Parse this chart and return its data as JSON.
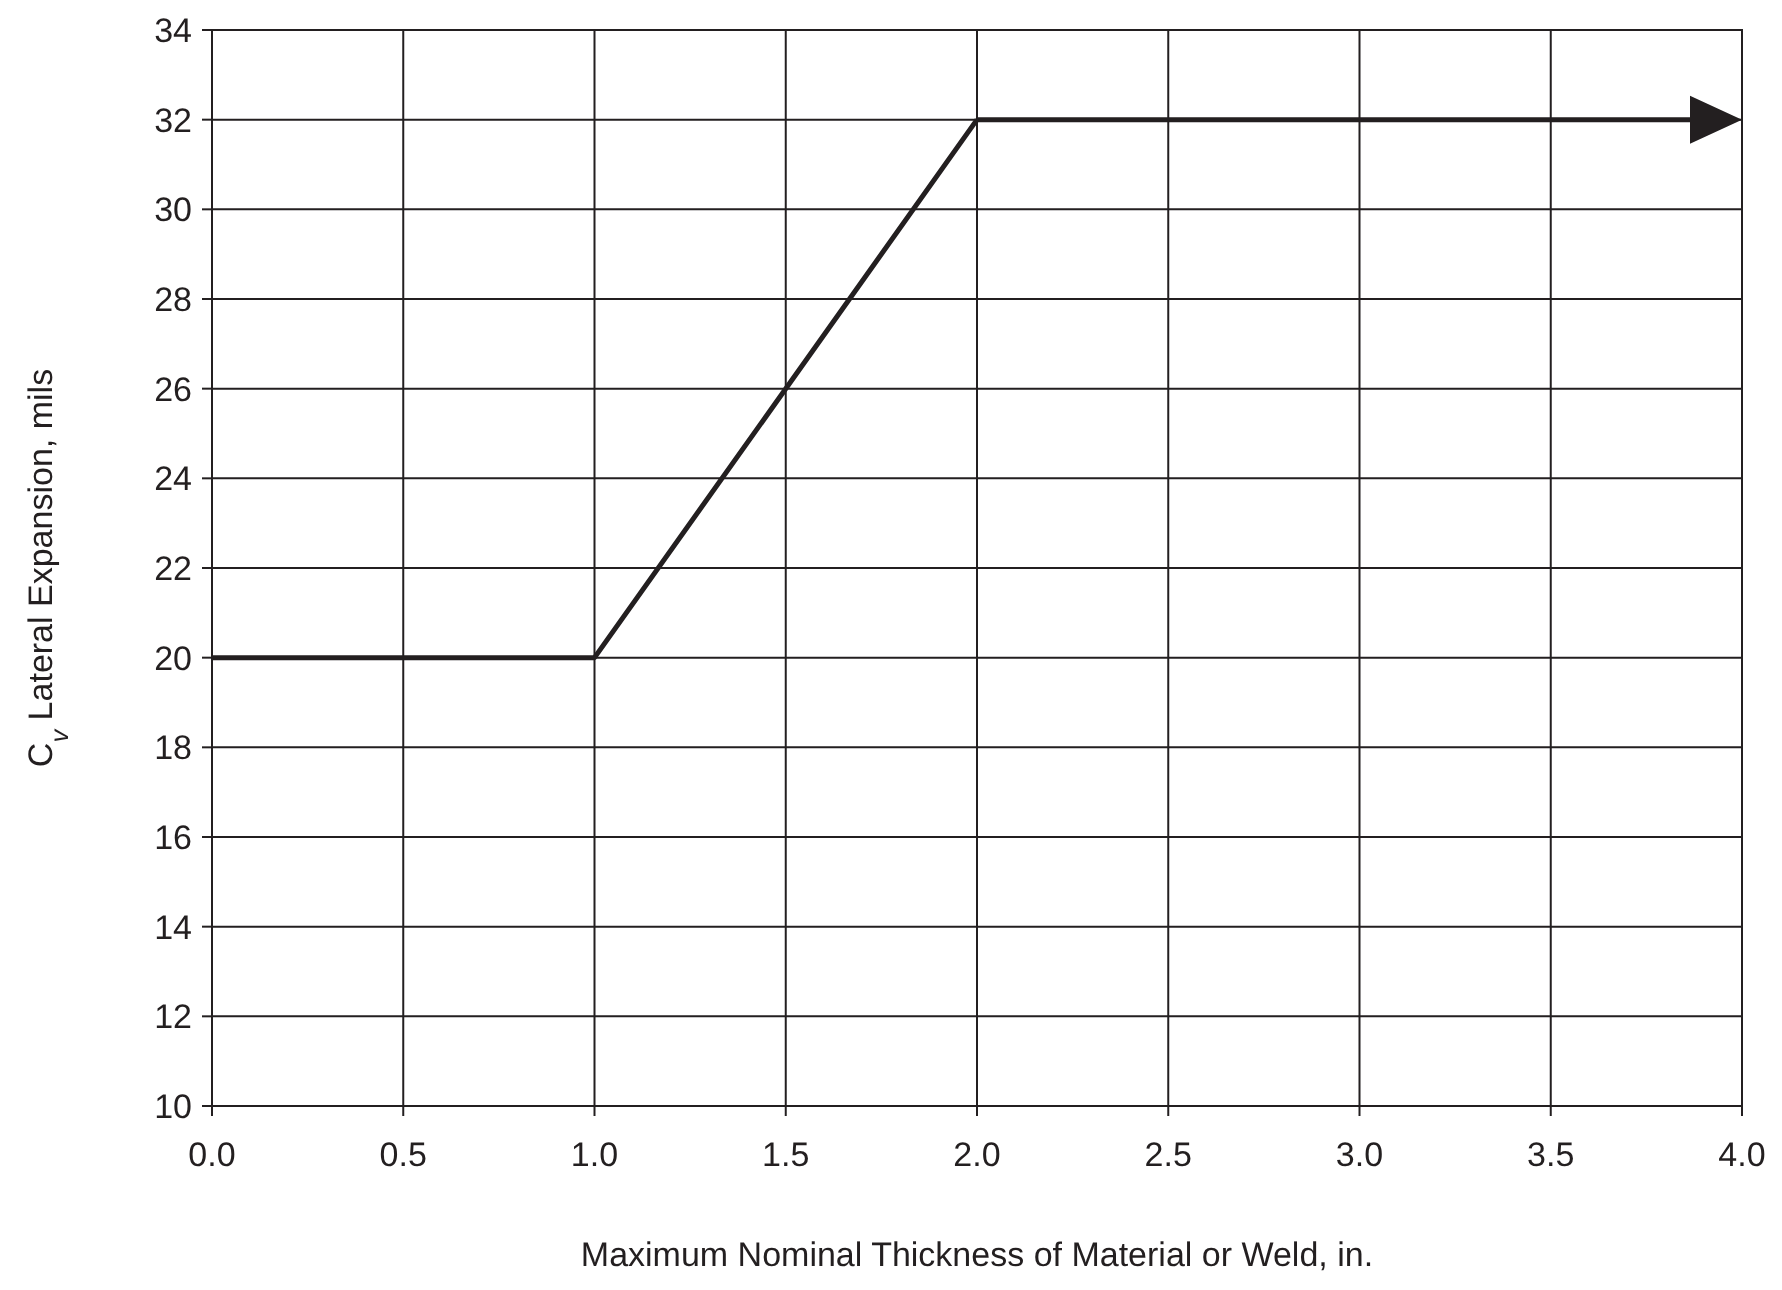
{
  "chart_data": {
    "type": "line",
    "xlabel": "Maximum Nominal Thickness of Material or Weld, in.",
    "ylabel": "C$_{v}$ Lateral Expansion, mils",
    "x": [
      0,
      1,
      2
    ],
    "series": [
      {
        "color": "#231f20",
        "values": [
          20,
          20,
          32
        ]
      }
    ],
    "xlim": [
      0,
      4
    ],
    "ylim": [
      10,
      34
    ],
    "xticks": [
      {
        "value": 0,
        "label": "0.0"
      },
      {
        "value": 0.5,
        "label": "0.5"
      },
      {
        "value": 1,
        "label": "1.0"
      },
      {
        "value": 1.5,
        "label": "1.5"
      },
      {
        "value": 2,
        "label": "2.0"
      },
      {
        "value": 2.5,
        "label": "2.5"
      },
      {
        "value": 3,
        "label": "3.0"
      },
      {
        "value": 3.5,
        "label": "3.5"
      },
      {
        "value": 4,
        "label": "4.0"
      }
    ],
    "yticks": [
      10,
      12,
      14,
      16,
      18,
      20,
      22,
      24,
      26,
      28,
      30,
      32,
      34
    ],
    "grid": true,
    "line_style": "solid",
    "marker": "none"
  }
}
